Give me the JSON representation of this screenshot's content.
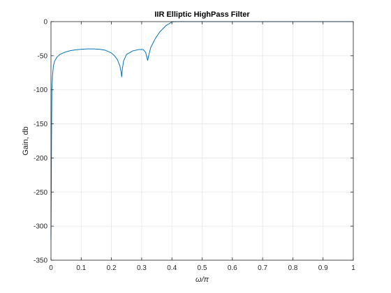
{
  "chart_data": {
    "type": "line",
    "title": "IIR Elliptic HighPass Filter",
    "xlabel": "ω/π",
    "ylabel": "Gain, db",
    "xlim": [
      0,
      1
    ],
    "ylim": [
      -350,
      0
    ],
    "xticks": [
      "0",
      "0.1",
      "0.2",
      "0.3",
      "0.4",
      "0.5",
      "0.6",
      "0.7",
      "0.8",
      "0.9",
      "1"
    ],
    "yticks": [
      "0",
      "-50",
      "-100",
      "-150",
      "-200",
      "-250",
      "-300",
      "-350"
    ],
    "grid": true,
    "series_color": "#0072BD",
    "grid_color": "#e6e6e6",
    "axis_color": "#262626",
    "series": [
      {
        "x": [
          0,
          0.001,
          0.002,
          0.003,
          0.005,
          0.008,
          0.012,
          0.02,
          0.03,
          0.045,
          0.06,
          0.08,
          0.1,
          0.12,
          0.14,
          0.16,
          0.18,
          0.2,
          0.21,
          0.22,
          0.228,
          0.232,
          0.234,
          0.236,
          0.24,
          0.25,
          0.27,
          0.29,
          0.305,
          0.313,
          0.317,
          0.32,
          0.323,
          0.33,
          0.345,
          0.36,
          0.38,
          0.395,
          0.4,
          0.405,
          0.42,
          0.45,
          0.5,
          0.6,
          0.7,
          0.8,
          0.9,
          1.0
        ],
        "y": [
          -320,
          -250,
          -160,
          -100,
          -80,
          -65,
          -58,
          -52,
          -48,
          -45,
          -43,
          -41.5,
          -40.5,
          -40,
          -40,
          -40.5,
          -42,
          -46,
          -50,
          -56,
          -65,
          -74,
          -81,
          -70,
          -58,
          -48,
          -43,
          -41,
          -41,
          -45,
          -52,
          -57,
          -50,
          -38,
          -25,
          -15,
          -6,
          -2,
          -0.5,
          -0.1,
          0,
          0,
          0,
          0,
          0,
          0,
          0,
          0
        ]
      }
    ]
  }
}
